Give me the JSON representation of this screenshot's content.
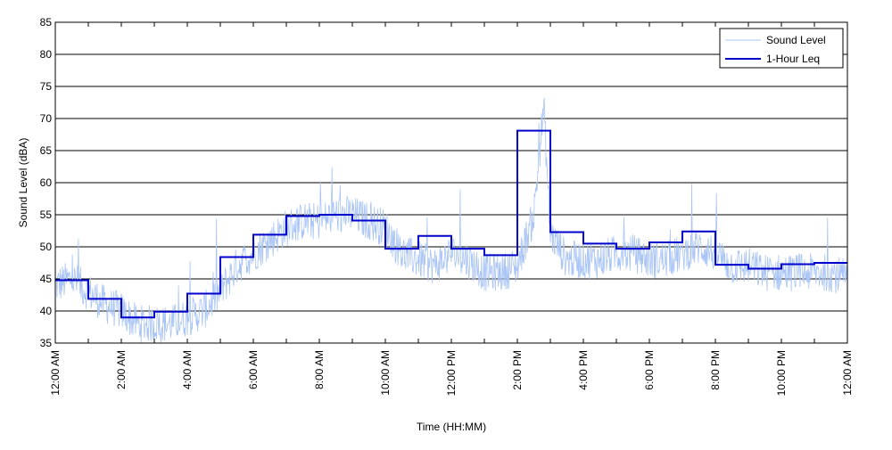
{
  "chart_data": {
    "type": "line",
    "xlabel": "Time (HH:MM)",
    "ylabel": "Sound Level (dBA)",
    "ylim": [
      35,
      85
    ],
    "yticks": [
      35,
      40,
      45,
      50,
      55,
      60,
      65,
      70,
      75,
      80,
      85
    ],
    "xlim": [
      0,
      24
    ],
    "xtick_labels": [
      "12:00 AM",
      "2:00 AM",
      "4:00 AM",
      "6:00 AM",
      "8:00 AM",
      "10:00 AM",
      "12:00 PM",
      "2:00 PM",
      "4:00 PM",
      "6:00 PM",
      "8:00 PM",
      "10:00 PM",
      "12:00 AM"
    ],
    "xtick_hours": [
      0,
      2,
      4,
      6,
      8,
      10,
      12,
      14,
      16,
      18,
      20,
      22,
      24
    ],
    "grid": "horizontal",
    "legend_position": "top-right",
    "series": [
      {
        "name": "Sound Level",
        "color": "#a9c4f5",
        "style": "thin-line",
        "anchors_hour": [
          0,
          0.5,
          1,
          1.5,
          2,
          2.5,
          3,
          3.5,
          4,
          4.5,
          5,
          5.5,
          6,
          6.5,
          7,
          7.5,
          8,
          8.5,
          9,
          9.5,
          10,
          10.5,
          11,
          11.5,
          12,
          12.5,
          13,
          13.5,
          14,
          14.5,
          14.8,
          15,
          15.5,
          16,
          16.5,
          17,
          17.5,
          18,
          18.5,
          19,
          19.5,
          20,
          20.5,
          21,
          21.5,
          22,
          22.5,
          23,
          23.5,
          24
        ],
        "anchors_value": [
          44,
          45,
          43,
          41,
          40,
          38,
          38,
          38,
          39,
          40,
          43,
          47,
          49,
          51,
          53,
          54,
          54,
          55,
          55,
          54,
          53,
          49,
          48,
          47,
          49,
          48,
          46,
          46,
          47,
          55,
          72,
          52,
          48,
          48,
          48,
          49,
          49,
          48,
          48,
          49,
          50,
          49,
          47,
          47,
          46,
          46,
          46,
          46,
          46,
          45
        ]
      },
      {
        "name": "1-Hour Leq",
        "color": "#0000cc",
        "style": "step",
        "values": [
          44.8,
          41.9,
          39.0,
          39.9,
          42.7,
          48.4,
          51.9,
          54.8,
          55.0,
          54.1,
          49.7,
          51.7,
          49.7,
          48.7,
          68.1,
          52.3,
          50.5,
          49.7,
          50.7,
          52.4,
          47.2,
          46.6,
          47.3,
          47.5
        ]
      }
    ]
  }
}
